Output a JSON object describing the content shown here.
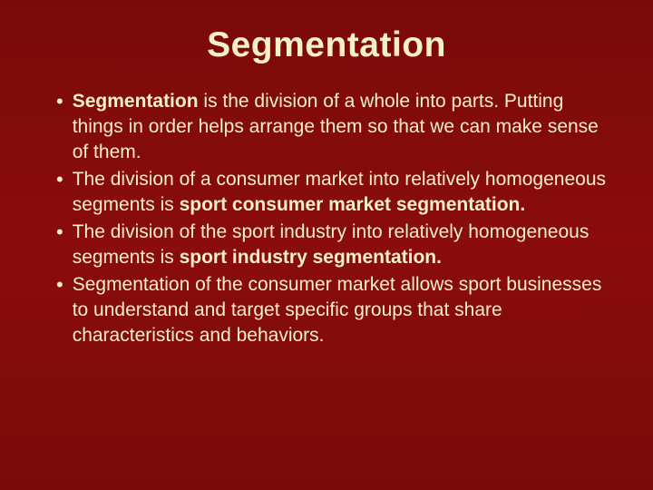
{
  "slide": {
    "title": "Segmentation",
    "background_gradient": [
      "#7a0a0a",
      "#8a0c0c",
      "#7a0a0a"
    ],
    "title_color": "#f5f0c8",
    "title_fontsize": 39,
    "text_color": "#f5f0c8",
    "text_fontsize": 21,
    "line_height": 28,
    "bullets": [
      {
        "segments": [
          {
            "text": "Segmentation",
            "bold": true
          },
          {
            "text": " is the division of a whole into parts. Putting things in order helps arrange them so that we can make sense of them.",
            "bold": false
          }
        ]
      },
      {
        "segments": [
          {
            "text": "The division of a consumer market into relatively homogeneous segments is ",
            "bold": false
          },
          {
            "text": "sport consumer market segmentation.",
            "bold": true
          }
        ]
      },
      {
        "segments": [
          {
            "text": "The division of the sport industry into relatively homogeneous segments is ",
            "bold": false
          },
          {
            "text": "sport industry segmentation.",
            "bold": true
          }
        ]
      },
      {
        "segments": [
          {
            "text": "Segmentation of the consumer market allows sport businesses to understand and target specific groups that share characteristics and behaviors.",
            "bold": false
          }
        ]
      }
    ]
  }
}
